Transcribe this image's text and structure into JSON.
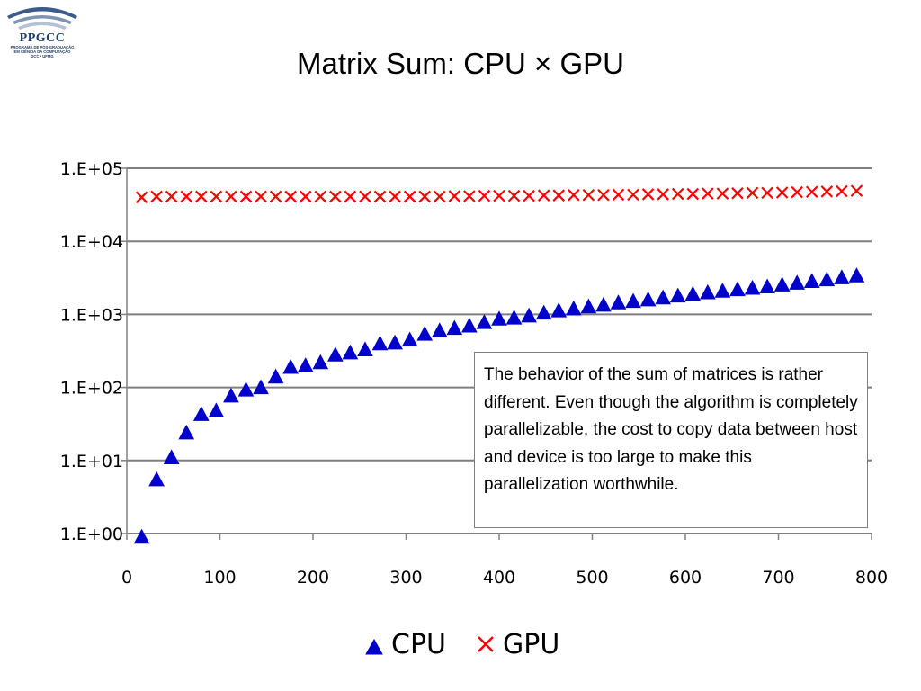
{
  "logo": {
    "name": "PPGCC",
    "line1": "PROGRAMA DE PÓS-GRADUAÇÃO",
    "line2": "EM CIÊNCIA DA COMPUTAÇÃO",
    "line3": "DCC • UFMG"
  },
  "slide": {
    "title": "Matrix Sum: CPU × GPU"
  },
  "note": {
    "text": "The behavior of the sum of matrices is rather different. Even though the algorithm is completely parallelizable, the cost to copy data between host and device is too large to make this parallelization worthwhile."
  },
  "legend": {
    "cpu": "CPU",
    "gpu": "GPU"
  },
  "colors": {
    "cpu": "#0000cc",
    "gpu": "#ff0000",
    "gridline": "#7f7f7f",
    "axis": "#808080"
  },
  "chart_data": {
    "type": "scatter",
    "title": "",
    "xlabel": "",
    "ylabel": "",
    "x_scale": "linear",
    "y_scale": "log",
    "xlim": [
      0,
      800
    ],
    "ylim": [
      1,
      100000
    ],
    "x_ticks": [
      0,
      100,
      200,
      300,
      400,
      500,
      600,
      700,
      800
    ],
    "x_tick_labels": [
      "0",
      "100",
      "200",
      "300",
      "400",
      "500",
      "600",
      "700",
      "800"
    ],
    "y_ticks": [
      1,
      10,
      100,
      1000,
      10000,
      100000
    ],
    "y_tick_labels": [
      "1.E+00",
      "1.E+01",
      "1.E+02",
      "1.E+03",
      "1.E+04",
      "1.E+05"
    ],
    "grid": "horizontal",
    "legend_position": "bottom",
    "series": [
      {
        "name": "CPU",
        "marker": "triangle",
        "x": [
          16,
          32,
          48,
          64,
          80,
          96,
          112,
          128,
          144,
          160,
          176,
          192,
          208,
          224,
          240,
          256,
          272,
          288,
          304,
          320,
          336,
          352,
          368,
          384,
          400,
          416,
          432,
          448,
          464,
          480,
          496,
          512,
          528,
          544,
          560,
          576,
          592,
          608,
          624,
          640,
          656,
          672,
          688,
          704,
          720,
          736,
          752,
          768,
          784
        ],
        "y": [
          0.9,
          5.5,
          11,
          24,
          43,
          48,
          77,
          93,
          100,
          140,
          190,
          200,
          220,
          280,
          300,
          330,
          400,
          410,
          450,
          540,
          600,
          650,
          700,
          780,
          870,
          900,
          960,
          1050,
          1130,
          1200,
          1280,
          1350,
          1450,
          1520,
          1600,
          1700,
          1800,
          1900,
          2000,
          2100,
          2200,
          2300,
          2400,
          2550,
          2700,
          2850,
          3000,
          3200,
          3400
        ]
      },
      {
        "name": "GPU",
        "marker": "x",
        "x": [
          16,
          32,
          48,
          64,
          80,
          96,
          112,
          128,
          144,
          160,
          176,
          192,
          208,
          224,
          240,
          256,
          272,
          288,
          304,
          320,
          336,
          352,
          368,
          384,
          400,
          416,
          432,
          448,
          464,
          480,
          496,
          512,
          528,
          544,
          560,
          576,
          592,
          608,
          624,
          640,
          656,
          672,
          688,
          704,
          720,
          736,
          752,
          768,
          784
        ],
        "y": [
          40000,
          41000,
          41000,
          41000,
          41000,
          41000,
          41000,
          41000,
          41000,
          41000,
          41000,
          41000,
          41000,
          41000,
          41000,
          41000,
          41000,
          41000,
          41000,
          41000,
          41000,
          41500,
          41500,
          42000,
          42000,
          42000,
          42000,
          42500,
          42500,
          43000,
          43000,
          43000,
          43500,
          43500,
          44000,
          44000,
          44500,
          44500,
          45000,
          45000,
          45500,
          46000,
          46000,
          46500,
          47000,
          47500,
          48000,
          48500,
          49000
        ]
      }
    ]
  }
}
